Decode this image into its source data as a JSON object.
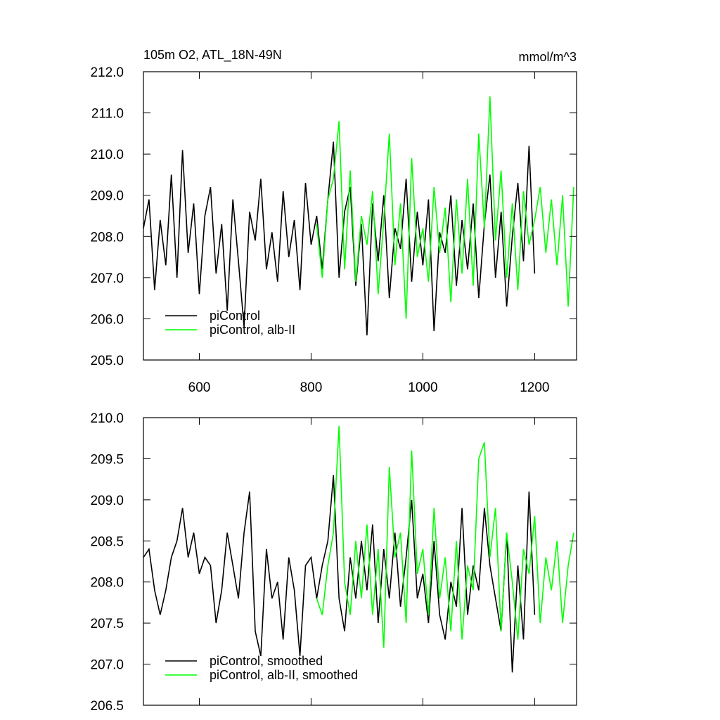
{
  "chart_data": [
    {
      "type": "line",
      "title": "105m O2, ATL_18N-49N",
      "unit_label": "mmol/m^3",
      "xlim": [
        500,
        1275
      ],
      "xticks": [
        600,
        800,
        1000,
        1200
      ],
      "xtick_labels": true,
      "ylim": [
        205,
        212
      ],
      "yticks": [
        {
          "value": 205,
          "label": "205.0"
        },
        {
          "value": 206,
          "label": "206.0"
        },
        {
          "value": 207,
          "label": "207.0"
        },
        {
          "value": 208,
          "label": "208.0"
        },
        {
          "value": 209,
          "label": "209.0"
        },
        {
          "value": 210,
          "label": "210.0"
        },
        {
          "value": 211,
          "label": "211.0"
        },
        {
          "value": 212,
          "label": "212.0"
        }
      ],
      "legend": "lower left",
      "series": [
        {
          "name": "piControl",
          "color": "#000000",
          "x": [
            500,
            510,
            520,
            530,
            540,
            550,
            560,
            570,
            580,
            590,
            600,
            610,
            620,
            630,
            640,
            650,
            660,
            670,
            680,
            690,
            700,
            710,
            720,
            730,
            740,
            750,
            760,
            770,
            780,
            790,
            800,
            810,
            820,
            830,
            840,
            850,
            860,
            870,
            880,
            890,
            900,
            910,
            920,
            930,
            940,
            950,
            960,
            970,
            980,
            990,
            1000,
            1010,
            1020,
            1030,
            1040,
            1050,
            1060,
            1070,
            1080,
            1090,
            1100,
            1110,
            1120,
            1130,
            1140,
            1150,
            1160,
            1170,
            1180,
            1190,
            1200
          ],
          "values": [
            208.2,
            208.9,
            206.7,
            208.4,
            207.3,
            209.5,
            207.0,
            210.1,
            207.6,
            208.8,
            206.6,
            208.5,
            209.2,
            207.1,
            208.3,
            206.2,
            208.9,
            207.4,
            205.8,
            208.6,
            207.9,
            209.4,
            207.2,
            208.1,
            206.9,
            209.1,
            207.5,
            208.4,
            206.7,
            209.3,
            207.8,
            208.5,
            207.2,
            208.9,
            210.3,
            207.0,
            208.6,
            209.2,
            206.8,
            208.3,
            205.6,
            208.8,
            207.4,
            209.0,
            206.5,
            208.2,
            207.7,
            209.4,
            206.9,
            208.6,
            207.3,
            208.9,
            205.7,
            208.1,
            207.6,
            209.0,
            206.8,
            208.4,
            207.2,
            208.8,
            206.5,
            208.3,
            209.5,
            207.0,
            208.6,
            206.3,
            208.0,
            209.3,
            207.4,
            210.2,
            207.1
          ]
        },
        {
          "name": "piControl, alb-II",
          "color": "#00ff00",
          "x": [
            810,
            820,
            830,
            840,
            850,
            860,
            870,
            880,
            890,
            900,
            910,
            920,
            930,
            940,
            950,
            960,
            970,
            980,
            990,
            1000,
            1010,
            1020,
            1030,
            1040,
            1050,
            1060,
            1070,
            1080,
            1090,
            1100,
            1110,
            1120,
            1130,
            1140,
            1150,
            1160,
            1170,
            1180,
            1190,
            1200,
            1210,
            1220,
            1230,
            1240,
            1250,
            1260,
            1270
          ],
          "values": [
            208.3,
            207.0,
            208.9,
            209.4,
            210.8,
            207.2,
            209.6,
            206.9,
            208.5,
            207.8,
            209.1,
            206.6,
            208.4,
            210.5,
            207.3,
            208.8,
            206.0,
            209.9,
            207.5,
            208.2,
            206.9,
            209.2,
            207.6,
            208.7,
            206.4,
            208.9,
            207.1,
            209.4,
            206.8,
            210.5,
            208.2,
            211.4,
            207.9,
            209.6,
            207.0,
            208.8,
            206.7,
            209.1,
            207.8,
            208.4,
            209.2,
            207.6,
            208.9,
            207.3,
            209.0,
            206.3,
            209.2
          ]
        }
      ]
    },
    {
      "type": "line",
      "xlim": [
        500,
        1275
      ],
      "xticks": [
        600,
        800,
        1000,
        1200
      ],
      "xtick_labels": false,
      "ylim": [
        206.5,
        210
      ],
      "yticks": [
        {
          "value": 206.5,
          "label": "206.5"
        },
        {
          "value": 207,
          "label": "207.0"
        },
        {
          "value": 207.5,
          "label": "207.5"
        },
        {
          "value": 208,
          "label": "208.0"
        },
        {
          "value": 208.5,
          "label": "208.5"
        },
        {
          "value": 209,
          "label": "209.0"
        },
        {
          "value": 209.5,
          "label": "209.5"
        },
        {
          "value": 210,
          "label": "210.0"
        }
      ],
      "legend": "lower left",
      "series": [
        {
          "name": "piControl, smoothed",
          "color": "#000000",
          "x": [
            500,
            510,
            520,
            530,
            540,
            550,
            560,
            570,
            580,
            590,
            600,
            610,
            620,
            630,
            640,
            650,
            660,
            670,
            680,
            690,
            700,
            710,
            720,
            730,
            740,
            750,
            760,
            770,
            780,
            790,
            800,
            810,
            820,
            830,
            840,
            850,
            860,
            870,
            880,
            890,
            900,
            910,
            920,
            930,
            940,
            950,
            960,
            970,
            980,
            990,
            1000,
            1010,
            1020,
            1030,
            1040,
            1050,
            1060,
            1070,
            1080,
            1090,
            1100,
            1110,
            1120,
            1130,
            1140,
            1150,
            1160,
            1170,
            1180,
            1190,
            1200
          ],
          "values": [
            208.3,
            208.4,
            207.9,
            207.6,
            207.9,
            208.3,
            208.5,
            208.9,
            208.3,
            208.6,
            208.1,
            208.3,
            208.2,
            207.5,
            207.9,
            208.6,
            208.2,
            207.8,
            208.6,
            209.1,
            207.4,
            207.1,
            208.4,
            207.8,
            208.0,
            207.3,
            208.3,
            207.9,
            207.1,
            208.2,
            208.3,
            207.8,
            208.2,
            208.5,
            209.3,
            207.8,
            207.4,
            208.3,
            207.8,
            208.5,
            207.9,
            208.7,
            207.5,
            208.4,
            207.8,
            208.6,
            207.7,
            208.3,
            209.0,
            207.8,
            208.1,
            207.5,
            208.5,
            207.6,
            207.3,
            208.0,
            207.7,
            208.9,
            207.6,
            208.2,
            207.9,
            208.9,
            208.2,
            207.8,
            207.4,
            208.6,
            206.9,
            208.2,
            207.3,
            209.1,
            207.6
          ]
        },
        {
          "name": "piControl, alb-II, smoothed",
          "color": "#00ff00",
          "x": [
            810,
            820,
            830,
            840,
            850,
            860,
            870,
            880,
            890,
            900,
            910,
            920,
            930,
            940,
            950,
            960,
            970,
            980,
            990,
            1000,
            1010,
            1020,
            1030,
            1040,
            1050,
            1060,
            1070,
            1080,
            1090,
            1100,
            1110,
            1120,
            1130,
            1140,
            1150,
            1160,
            1170,
            1180,
            1190,
            1200,
            1210,
            1220,
            1230,
            1240,
            1250,
            1260,
            1270
          ],
          "values": [
            207.8,
            207.6,
            208.2,
            208.6,
            209.9,
            208.0,
            207.6,
            208.5,
            207.8,
            208.7,
            207.6,
            208.4,
            207.2,
            209.4,
            208.3,
            208.6,
            207.5,
            209.6,
            208.1,
            208.4,
            207.6,
            208.9,
            207.8,
            208.3,
            207.4,
            208.5,
            207.3,
            208.2,
            207.9,
            209.5,
            209.7,
            208.3,
            208.9,
            207.4,
            208.6,
            208.0,
            207.3,
            208.4,
            208.1,
            208.8,
            207.5,
            208.3,
            207.9,
            208.5,
            207.5,
            208.2,
            208.6
          ]
        }
      ]
    }
  ]
}
